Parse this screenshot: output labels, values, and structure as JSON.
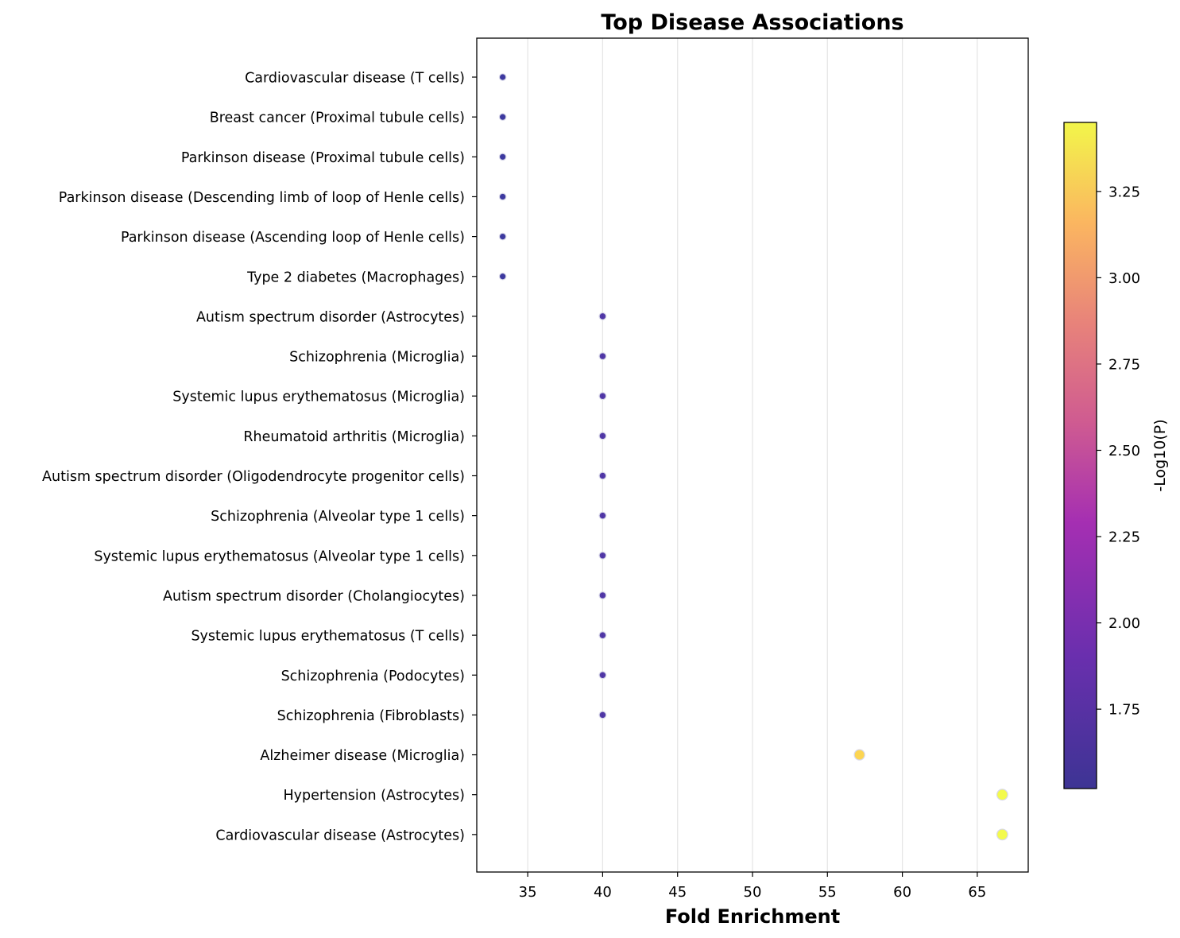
{
  "chart_data": {
    "type": "scatter",
    "title": "Top Disease Associations",
    "xlabel": "Fold Enrichment",
    "ylabel": "",
    "xlim": [
      31.6,
      68.4
    ],
    "xticks": [
      35,
      40,
      45,
      50,
      55,
      60,
      65
    ],
    "grid": "vertical",
    "categories": [
      "Cardiovascular disease (T cells)",
      "Breast cancer (Proximal tubule cells)",
      "Parkinson disease (Proximal tubule cells)",
      "Parkinson disease (Descending limb of loop of Henle cells)",
      "Parkinson disease (Ascending loop of Henle cells)",
      "Type 2 diabetes (Macrophages)",
      "Autism spectrum disorder (Astrocytes)",
      "Schizophrenia (Microglia)",
      "Systemic lupus erythematosus (Microglia)",
      "Rheumatoid arthritis (Microglia)",
      "Autism spectrum disorder (Oligodendrocyte progenitor cells)",
      "Schizophrenia (Alveolar type 1 cells)",
      "Systemic lupus erythematosus (Alveolar type 1 cells)",
      "Autism spectrum disorder (Cholangiocytes)",
      "Systemic lupus erythematosus (T cells)",
      "Schizophrenia (Podocytes)",
      "Schizophrenia (Fibroblasts)",
      "Alzheimer disease (Microglia)",
      "Hypertension (Astrocytes)",
      "Cardiovascular disease (Astrocytes)"
    ],
    "fold_enrichment": [
      33.33,
      33.33,
      33.33,
      33.33,
      33.33,
      33.33,
      40.0,
      40.0,
      40.0,
      40.0,
      40.0,
      40.0,
      40.0,
      40.0,
      40.0,
      40.0,
      40.0,
      57.14,
      66.67,
      66.67
    ],
    "neg_log10_p": [
      1.52,
      1.52,
      1.52,
      1.52,
      1.52,
      1.52,
      1.62,
      1.62,
      1.62,
      1.62,
      1.62,
      1.62,
      1.62,
      1.62,
      1.62,
      1.62,
      1.62,
      3.25,
      3.45,
      3.45
    ],
    "colorbar": {
      "label": "-Log10(P)",
      "range": [
        1.52,
        3.45
      ],
      "ticks": [
        1.75,
        2.0,
        2.25,
        2.5,
        2.75,
        3.0,
        3.25
      ],
      "colormap": "plasma"
    }
  }
}
